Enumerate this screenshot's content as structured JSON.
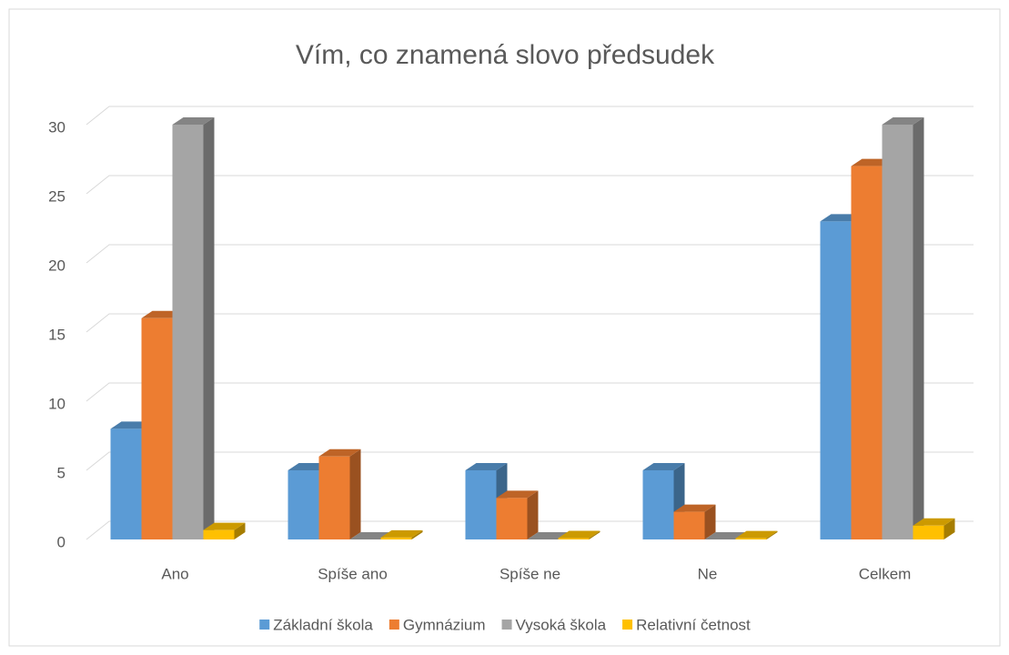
{
  "chart_data": {
    "type": "bar3d",
    "title": "Vím, co znamená slovo předsudek",
    "categories": [
      "Ano",
      "Spíše ano",
      "Spíše ne",
      "Ne",
      "Celkem"
    ],
    "series": [
      {
        "name": "Základní škola",
        "color": "#5b9bd5",
        "values": [
          8,
          5,
          5,
          5,
          23
        ]
      },
      {
        "name": "Gymnázium",
        "color": "#ed7d31",
        "values": [
          16,
          6,
          3,
          2,
          27
        ]
      },
      {
        "name": "Vysoká škola",
        "color": "#a5a5a5",
        "values": [
          30,
          0,
          0,
          0,
          30
        ]
      },
      {
        "name": "Relativní četnost",
        "color": "#ffc000",
        "values": [
          0.68,
          0.14,
          0.1,
          0.09,
          1
        ]
      }
    ],
    "ylim": [
      0,
      30
    ],
    "yticks": [
      0,
      5,
      10,
      15,
      20,
      25,
      30
    ],
    "grid": true,
    "legend": "bottom"
  }
}
